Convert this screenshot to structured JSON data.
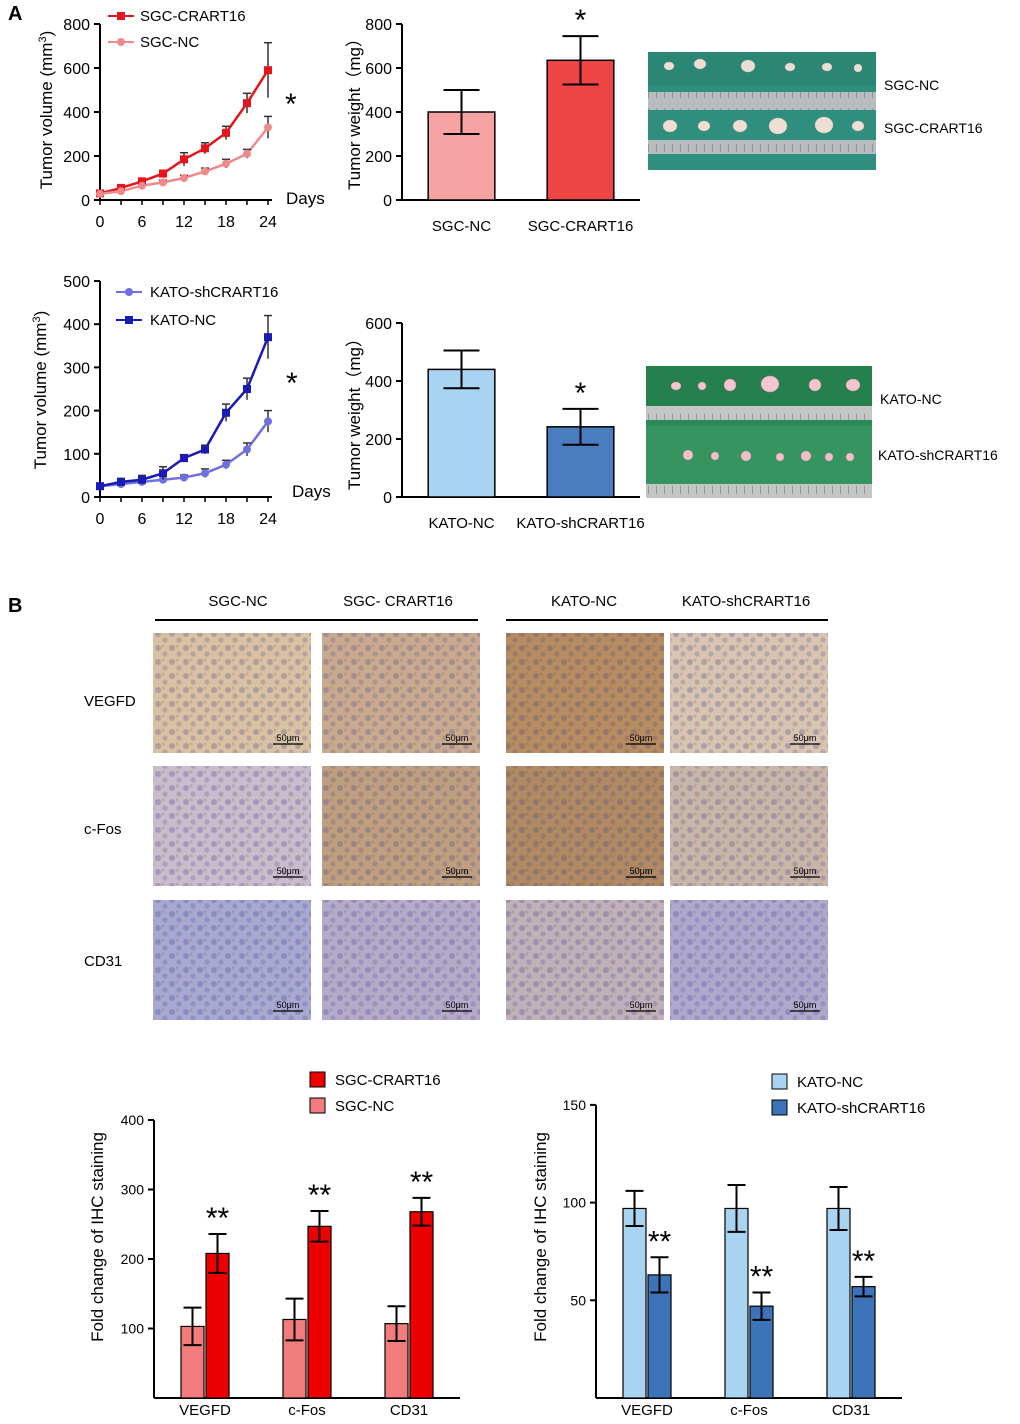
{
  "panels": {
    "a": "A",
    "b": "B"
  },
  "chart_data": [
    {
      "type": "line",
      "id": "c1",
      "xlabel": "Days",
      "ylabel": "Tumor volume (mm3)",
      "xticks": [
        0,
        6,
        12,
        18,
        24
      ],
      "yticks": [
        0,
        200,
        400,
        600,
        800
      ],
      "xlim": [
        0,
        24
      ],
      "ylim": [
        0,
        800
      ],
      "x": [
        0,
        3,
        6,
        9,
        12,
        15,
        18,
        21,
        24
      ],
      "series": [
        {
          "name": "SGC-CRART16",
          "color": "#e8141b",
          "marker": "square",
          "values": [
            30,
            55,
            85,
            120,
            185,
            235,
            305,
            440,
            590
          ],
          "errors": [
            8,
            10,
            12,
            15,
            30,
            25,
            30,
            45,
            125
          ]
        },
        {
          "name": "SGC-NC",
          "color": "#f08a8a",
          "marker": "circle",
          "values": [
            28,
            40,
            65,
            80,
            100,
            130,
            165,
            210,
            330
          ],
          "errors": [
            6,
            8,
            8,
            10,
            12,
            15,
            20,
            20,
            50
          ]
        }
      ],
      "annotation": "*"
    },
    {
      "type": "bar",
      "id": "c2",
      "ylabel": "Tumor weight（mg）",
      "categories": [
        "SGC-NC",
        "SGC-CRART16"
      ],
      "values": [
        400,
        635
      ],
      "errors": [
        100,
        110
      ],
      "colors": [
        "#f8a3a3",
        "#f04545"
      ],
      "yticks": [
        0,
        200,
        400,
        600,
        800
      ],
      "ylim": [
        0,
        800
      ],
      "annotation": "*"
    },
    {
      "type": "line",
      "id": "c3",
      "xlabel": "Days",
      "ylabel": "Tumor volume (mm3)",
      "xticks": [
        0,
        6,
        12,
        18,
        24
      ],
      "yticks": [
        0,
        100,
        200,
        300,
        400,
        500
      ],
      "xlim": [
        0,
        24
      ],
      "ylim": [
        0,
        500
      ],
      "x": [
        0,
        3,
        6,
        9,
        12,
        15,
        18,
        21,
        24
      ],
      "series": [
        {
          "name": "KATO-shCRART16",
          "color": "#6f6fe0",
          "marker": "circle",
          "values": [
            25,
            30,
            35,
            40,
            45,
            55,
            75,
            110,
            175
          ],
          "errors": [
            5,
            8,
            8,
            8,
            6,
            10,
            10,
            15,
            25
          ]
        },
        {
          "name": "KATO-NC",
          "color": "#1a1ab4",
          "marker": "square",
          "values": [
            25,
            35,
            40,
            55,
            90,
            110,
            195,
            250,
            370
          ],
          "errors": [
            5,
            8,
            10,
            15,
            8,
            10,
            20,
            25,
            50
          ]
        }
      ],
      "annotation": "*"
    },
    {
      "type": "bar",
      "id": "c4",
      "ylabel": "Tumor weight（mg）",
      "categories": [
        "KATO-NC",
        "KATO-shCRART16"
      ],
      "values": [
        440,
        242
      ],
      "errors": [
        65,
        62
      ],
      "colors": [
        "#a8d4f2",
        "#4a7cc0"
      ],
      "yticks": [
        0,
        200,
        400,
        600
      ],
      "ylim": [
        0,
        600
      ],
      "annotation": "*"
    },
    {
      "type": "bar",
      "id": "c5",
      "ylabel": "Fold change of IHC staining",
      "categories": [
        "VEGFD",
        "c-Fos",
        "CD31"
      ],
      "series": [
        {
          "name": "SGC-NC",
          "color": "#f27b7b",
          "values": [
            103,
            113,
            107
          ],
          "errors": [
            27,
            30,
            25
          ]
        },
        {
          "name": "SGC-CRART16",
          "color": "#ee0000",
          "values": [
            208,
            247,
            268
          ],
          "errors": [
            28,
            22,
            20
          ]
        }
      ],
      "legend_order": [
        "SGC-CRART16",
        "SGC-NC"
      ],
      "yticks": [
        100,
        200,
        300,
        400
      ],
      "ylim": [
        0,
        400
      ],
      "annotation": "**"
    },
    {
      "type": "bar",
      "id": "c6",
      "ylabel": "Fold change of IHC staining",
      "categories": [
        "VEGFD",
        "c-Fos",
        "CD31"
      ],
      "series": [
        {
          "name": "KATO-NC",
          "color": "#a8d4f2",
          "values": [
            97,
            97,
            97
          ],
          "errors": [
            9,
            12,
            11
          ]
        },
        {
          "name": "KATO-shCRART16",
          "color": "#3d73b8",
          "values": [
            63,
            47,
            57
          ],
          "errors": [
            9,
            7,
            5
          ]
        }
      ],
      "legend_order": [
        "KATO-NC",
        "KATO-shCRART16"
      ],
      "yticks": [
        50,
        100,
        150
      ],
      "ylim": [
        0,
        150
      ],
      "annotation": "**"
    }
  ],
  "photos": {
    "sgc": {
      "labels": [
        "SGC-NC",
        "SGC-CRART16"
      ]
    },
    "kato": {
      "labels": [
        "KATO-NC",
        "KATO-shCRART16"
      ]
    }
  },
  "ihc": {
    "columns": [
      "SGC-NC",
      "SGC- CRART16",
      "KATO-NC",
      "KATO-shCRART16"
    ],
    "rows": [
      "VEGFD",
      "c-Fos",
      "CD31"
    ],
    "scale": "50μm",
    "tones": [
      [
        "#d9c2a3",
        "#c9aa8f",
        "#b78c60",
        "#d8c4b0"
      ],
      [
        "#c9bccb",
        "#bf9f7f",
        "#b08a62",
        "#c9b6a8"
      ],
      [
        "#a9a8d0",
        "#b5aac8",
        "#c0b0b8",
        "#b0a8cc"
      ]
    ]
  }
}
